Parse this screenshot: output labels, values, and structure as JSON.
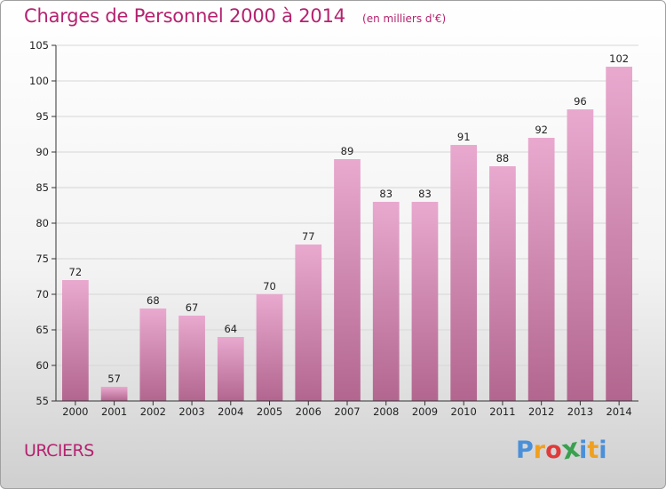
{
  "chart_data": {
    "type": "bar",
    "title": "Charges de Personnel 2000 à 2014",
    "subtitle": "(en milliers d'€)",
    "categories": [
      "2000",
      "2001",
      "2002",
      "2003",
      "2004",
      "2005",
      "2006",
      "2007",
      "2008",
      "2009",
      "2010",
      "2011",
      "2012",
      "2013",
      "2014"
    ],
    "values": [
      72,
      57,
      68,
      67,
      64,
      70,
      77,
      89,
      83,
      83,
      91,
      88,
      92,
      96,
      102
    ],
    "ylim": [
      55,
      105
    ],
    "yticks": [
      55,
      60,
      65,
      70,
      75,
      80,
      85,
      90,
      95,
      100,
      105
    ],
    "grid": true,
    "xlabel": "",
    "ylabel": "",
    "bar_color_top": "#e9a9cf",
    "bar_color_bottom": "#b2668f"
  },
  "footer": {
    "place": "URCIERS",
    "logo": {
      "letters": [
        "P",
        "r",
        "o",
        "x",
        "i",
        "t",
        "i"
      ],
      "colors": [
        "#4a90d9",
        "#f0a020",
        "#e03a3a",
        "#3aa050",
        "#4a90d9",
        "#f0a020",
        "#4a90d9"
      ]
    }
  }
}
